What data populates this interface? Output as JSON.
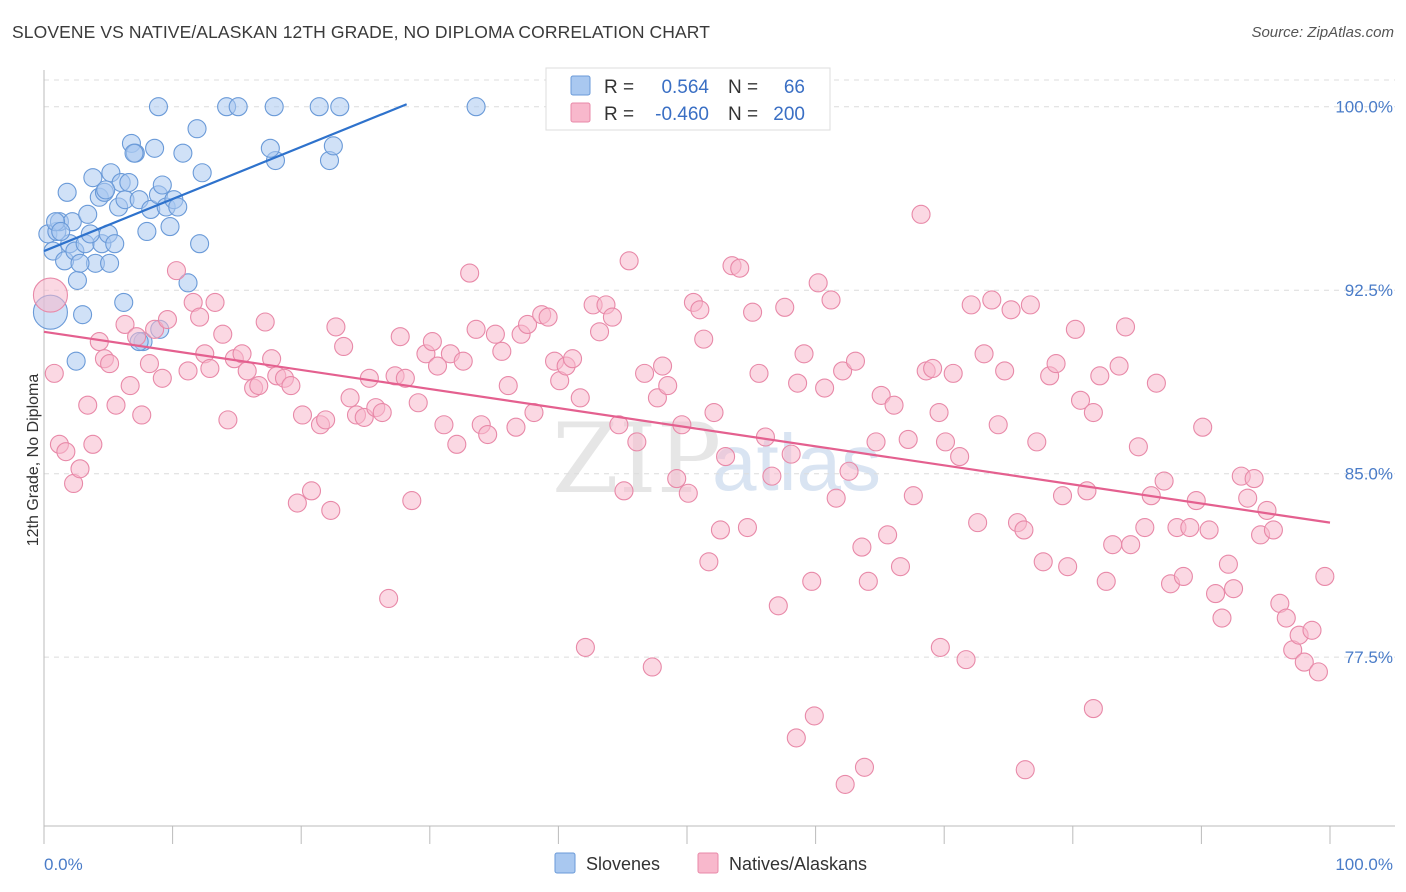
{
  "chart_data": {
    "type": "scatter",
    "title": "SLOVENE VS NATIVE/ALASKAN 12TH GRADE, NO DIPLOMA CORRELATION CHART",
    "source": "Source: ZipAtlas.com",
    "xlabel": "",
    "ylabel": "12th Grade, No Diploma",
    "xlim": [
      0,
      100
    ],
    "ylim": [
      70.6,
      101.5
    ],
    "x_tick_labels": [
      {
        "value": 0,
        "label": "0.0%"
      },
      {
        "value": 100,
        "label": "100.0%"
      }
    ],
    "y_ticks": [
      {
        "value": 100.0,
        "label": "100.0%"
      },
      {
        "value": 92.5,
        "label": "92.5%"
      },
      {
        "value": 85.0,
        "label": "85.0%"
      },
      {
        "value": 77.5,
        "label": "77.5%"
      }
    ],
    "legend": {
      "entries": [
        {
          "r_label": "R =",
          "r_value": "0.564",
          "n_label": "N =",
          "n_value": "66",
          "color": "#a9c8f0"
        },
        {
          "r_label": "R =",
          "r_value": "-0.460",
          "n_label": "N =",
          "n_value": "200",
          "color": "#f8b8cc"
        }
      ]
    },
    "watermark": {
      "zip": "ZIP",
      "atlas": "atlas"
    },
    "series": [
      {
        "name": "Slovenes",
        "fill": "#a9c8f0",
        "stroke": "#6a9ad8",
        "trend_color": "#2e72cc",
        "trend": {
          "x": [
            0,
            28.2
          ],
          "y": [
            94.1,
            100.1
          ]
        },
        "points": [
          [
            0.3,
            94.8
          ],
          [
            0.7,
            94.1
          ],
          [
            1.0,
            94.9
          ],
          [
            1.2,
            95.3
          ],
          [
            1.6,
            93.7
          ],
          [
            1.8,
            96.5
          ],
          [
            2.0,
            94.4
          ],
          [
            2.2,
            95.3
          ],
          [
            2.4,
            94.1
          ],
          [
            2.6,
            92.9
          ],
          [
            3.0,
            91.5
          ],
          [
            3.2,
            94.4
          ],
          [
            3.4,
            95.6
          ],
          [
            3.8,
            97.1
          ],
          [
            4.0,
            93.6
          ],
          [
            4.3,
            96.3
          ],
          [
            4.5,
            94.4
          ],
          [
            4.7,
            96.5
          ],
          [
            5.0,
            94.8
          ],
          [
            5.2,
            97.3
          ],
          [
            5.5,
            94.4
          ],
          [
            5.8,
            95.9
          ],
          [
            6.0,
            96.9
          ],
          [
            6.3,
            96.2
          ],
          [
            6.6,
            96.9
          ],
          [
            6.8,
            98.5
          ],
          [
            7.1,
            98.1
          ],
          [
            7.4,
            96.2
          ],
          [
            7.7,
            90.4
          ],
          [
            8.0,
            94.9
          ],
          [
            8.3,
            95.8
          ],
          [
            8.6,
            98.3
          ],
          [
            8.9,
            96.4
          ],
          [
            9.2,
            96.8
          ],
          [
            9.5,
            95.9
          ],
          [
            9.8,
            95.1
          ],
          [
            10.1,
            96.2
          ],
          [
            10.8,
            98.1
          ],
          [
            11.2,
            92.8
          ],
          [
            11.9,
            99.1
          ],
          [
            12.3,
            97.3
          ],
          [
            14.2,
            100.0
          ],
          [
            15.1,
            100.0
          ],
          [
            18.0,
            97.8
          ],
          [
            17.6,
            98.3
          ],
          [
            21.4,
            100.0
          ],
          [
            22.2,
            97.8
          ],
          [
            22.5,
            98.4
          ],
          [
            23.0,
            100.0
          ],
          [
            33.6,
            100.0
          ],
          [
            8.9,
            100.0
          ],
          [
            0.9,
            95.3
          ],
          [
            2.8,
            93.6
          ],
          [
            12.1,
            94.4
          ],
          [
            7.0,
            98.1
          ],
          [
            10.4,
            95.9
          ],
          [
            3.6,
            94.8
          ],
          [
            6.2,
            92.0
          ],
          [
            0.5,
            91.6
          ],
          [
            2.5,
            89.6
          ],
          [
            1.3,
            94.9
          ],
          [
            4.8,
            96.6
          ],
          [
            9.0,
            90.9
          ],
          [
            17.9,
            100.0
          ],
          [
            5.1,
            93.6
          ],
          [
            7.4,
            90.4
          ]
        ]
      },
      {
        "name": "Natives/Alaskans",
        "fill": "#f8b8cc",
        "stroke": "#e889a8",
        "trend_color": "#e4608f",
        "trend": {
          "x": [
            0,
            100
          ],
          "y": [
            90.8,
            83.0
          ]
        },
        "points": [
          [
            0.5,
            92.3
          ],
          [
            0.8,
            89.1
          ],
          [
            1.2,
            86.2
          ],
          [
            1.7,
            85.9
          ],
          [
            2.3,
            84.6
          ],
          [
            2.8,
            85.2
          ],
          [
            3.4,
            87.8
          ],
          [
            3.8,
            86.2
          ],
          [
            4.3,
            90.4
          ],
          [
            4.7,
            89.7
          ],
          [
            5.1,
            89.5
          ],
          [
            5.6,
            87.8
          ],
          [
            6.3,
            91.1
          ],
          [
            6.7,
            88.6
          ],
          [
            7.2,
            90.6
          ],
          [
            7.6,
            87.4
          ],
          [
            8.2,
            89.5
          ],
          [
            8.6,
            90.9
          ],
          [
            9.2,
            88.9
          ],
          [
            9.6,
            91.3
          ],
          [
            10.3,
            93.3
          ],
          [
            11.2,
            89.2
          ],
          [
            11.6,
            92.0
          ],
          [
            12.1,
            91.4
          ],
          [
            12.5,
            89.9
          ],
          [
            12.9,
            89.3
          ],
          [
            13.3,
            92.0
          ],
          [
            13.9,
            90.7
          ],
          [
            14.3,
            87.2
          ],
          [
            14.8,
            89.7
          ],
          [
            15.4,
            89.9
          ],
          [
            15.8,
            89.2
          ],
          [
            16.3,
            88.5
          ],
          [
            16.7,
            88.6
          ],
          [
            17.2,
            91.2
          ],
          [
            17.7,
            89.7
          ],
          [
            18.1,
            89.0
          ],
          [
            18.7,
            88.9
          ],
          [
            19.2,
            88.6
          ],
          [
            19.7,
            83.8
          ],
          [
            20.1,
            87.4
          ],
          [
            20.8,
            84.3
          ],
          [
            21.5,
            87.0
          ],
          [
            21.9,
            87.2
          ],
          [
            22.3,
            83.5
          ],
          [
            22.7,
            91.0
          ],
          [
            23.3,
            90.2
          ],
          [
            23.8,
            88.1
          ],
          [
            24.3,
            87.4
          ],
          [
            24.9,
            87.3
          ],
          [
            25.3,
            88.9
          ],
          [
            25.8,
            87.7
          ],
          [
            26.3,
            87.5
          ],
          [
            26.8,
            79.9
          ],
          [
            27.3,
            89.0
          ],
          [
            27.7,
            90.6
          ],
          [
            28.1,
            88.9
          ],
          [
            28.6,
            83.9
          ],
          [
            29.1,
            87.9
          ],
          [
            29.7,
            89.9
          ],
          [
            30.2,
            90.4
          ],
          [
            30.6,
            89.4
          ],
          [
            31.1,
            87.0
          ],
          [
            31.6,
            89.9
          ],
          [
            32.1,
            86.2
          ],
          [
            32.6,
            89.6
          ],
          [
            33.1,
            93.2
          ],
          [
            33.6,
            90.9
          ],
          [
            34.0,
            87.0
          ],
          [
            34.5,
            86.6
          ],
          [
            35.1,
            90.7
          ],
          [
            35.6,
            90.0
          ],
          [
            36.1,
            88.6
          ],
          [
            36.7,
            86.9
          ],
          [
            37.1,
            90.7
          ],
          [
            37.6,
            91.1
          ],
          [
            38.1,
            87.5
          ],
          [
            38.7,
            91.5
          ],
          [
            39.2,
            91.4
          ],
          [
            39.7,
            89.6
          ],
          [
            40.1,
            88.8
          ],
          [
            40.6,
            89.4
          ],
          [
            41.1,
            89.7
          ],
          [
            41.7,
            88.1
          ],
          [
            42.1,
            77.9
          ],
          [
            42.7,
            91.9
          ],
          [
            43.2,
            90.8
          ],
          [
            43.7,
            91.9
          ],
          [
            44.2,
            91.4
          ],
          [
            44.7,
            87.0
          ],
          [
            45.1,
            84.3
          ],
          [
            45.5,
            93.7
          ],
          [
            46.1,
            86.3
          ],
          [
            46.7,
            89.1
          ],
          [
            47.3,
            77.1
          ],
          [
            47.7,
            88.1
          ],
          [
            48.1,
            89.4
          ],
          [
            48.5,
            88.6
          ],
          [
            49.2,
            84.8
          ],
          [
            49.6,
            87.0
          ],
          [
            50.1,
            84.2
          ],
          [
            50.5,
            92.0
          ],
          [
            51.0,
            91.7
          ],
          [
            51.3,
            90.5
          ],
          [
            51.7,
            81.4
          ],
          [
            52.1,
            87.5
          ],
          [
            52.6,
            82.7
          ],
          [
            53.0,
            85.7
          ],
          [
            53.5,
            93.5
          ],
          [
            54.1,
            93.4
          ],
          [
            54.7,
            82.8
          ],
          [
            55.1,
            91.6
          ],
          [
            55.6,
            89.1
          ],
          [
            56.1,
            86.5
          ],
          [
            56.6,
            84.9
          ],
          [
            57.1,
            79.6
          ],
          [
            57.6,
            91.8
          ],
          [
            58.1,
            85.8
          ],
          [
            58.6,
            88.7
          ],
          [
            59.1,
            89.9
          ],
          [
            59.7,
            80.6
          ],
          [
            60.2,
            92.8
          ],
          [
            60.7,
            88.5
          ],
          [
            61.2,
            92.1
          ],
          [
            61.6,
            84.0
          ],
          [
            62.1,
            89.2
          ],
          [
            62.6,
            85.1
          ],
          [
            63.1,
            89.6
          ],
          [
            63.6,
            82.0
          ],
          [
            64.1,
            80.6
          ],
          [
            64.7,
            86.3
          ],
          [
            65.1,
            88.2
          ],
          [
            65.6,
            82.5
          ],
          [
            66.1,
            87.8
          ],
          [
            66.6,
            81.2
          ],
          [
            67.2,
            86.4
          ],
          [
            67.6,
            84.1
          ],
          [
            68.2,
            95.6
          ],
          [
            68.6,
            89.2
          ],
          [
            69.1,
            89.3
          ],
          [
            69.6,
            87.5
          ],
          [
            70.1,
            86.3
          ],
          [
            70.7,
            89.1
          ],
          [
            71.2,
            85.7
          ],
          [
            71.7,
            77.4
          ],
          [
            72.1,
            91.9
          ],
          [
            72.6,
            83.0
          ],
          [
            73.1,
            89.9
          ],
          [
            73.7,
            92.1
          ],
          [
            74.2,
            87.0
          ],
          [
            74.7,
            89.2
          ],
          [
            75.2,
            91.7
          ],
          [
            75.7,
            83.0
          ],
          [
            76.2,
            82.7
          ],
          [
            76.7,
            91.9
          ],
          [
            77.2,
            86.3
          ],
          [
            77.7,
            81.4
          ],
          [
            78.2,
            89.0
          ],
          [
            78.7,
            89.5
          ],
          [
            79.2,
            84.1
          ],
          [
            79.6,
            81.2
          ],
          [
            80.2,
            90.9
          ],
          [
            80.6,
            88.0
          ],
          [
            81.1,
            84.3
          ],
          [
            81.6,
            87.5
          ],
          [
            82.1,
            89.0
          ],
          [
            82.6,
            80.6
          ],
          [
            83.1,
            82.1
          ],
          [
            83.6,
            89.4
          ],
          [
            84.1,
            91.0
          ],
          [
            84.5,
            82.1
          ],
          [
            85.1,
            86.1
          ],
          [
            85.6,
            82.8
          ],
          [
            86.1,
            84.1
          ],
          [
            86.5,
            88.7
          ],
          [
            87.1,
            84.7
          ],
          [
            87.6,
            80.5
          ],
          [
            88.1,
            82.8
          ],
          [
            88.6,
            80.8
          ],
          [
            89.1,
            82.8
          ],
          [
            89.6,
            83.9
          ],
          [
            90.1,
            86.9
          ],
          [
            90.6,
            82.7
          ],
          [
            91.1,
            80.1
          ],
          [
            91.6,
            79.1
          ],
          [
            92.1,
            81.3
          ],
          [
            92.5,
            80.3
          ],
          [
            93.1,
            84.9
          ],
          [
            93.6,
            84.0
          ],
          [
            94.1,
            84.8
          ],
          [
            94.6,
            82.5
          ],
          [
            95.1,
            83.5
          ],
          [
            95.6,
            82.7
          ],
          [
            96.1,
            79.7
          ],
          [
            96.6,
            79.1
          ],
          [
            97.1,
            77.8
          ],
          [
            97.6,
            78.4
          ],
          [
            98.0,
            77.3
          ],
          [
            98.6,
            78.6
          ],
          [
            99.1,
            76.9
          ],
          [
            99.6,
            80.8
          ],
          [
            69.7,
            77.9
          ],
          [
            76.3,
            72.9
          ],
          [
            58.5,
            74.2
          ],
          [
            59.9,
            75.1
          ],
          [
            62.3,
            72.3
          ],
          [
            63.8,
            73.0
          ],
          [
            81.6,
            75.4
          ]
        ]
      }
    ]
  }
}
